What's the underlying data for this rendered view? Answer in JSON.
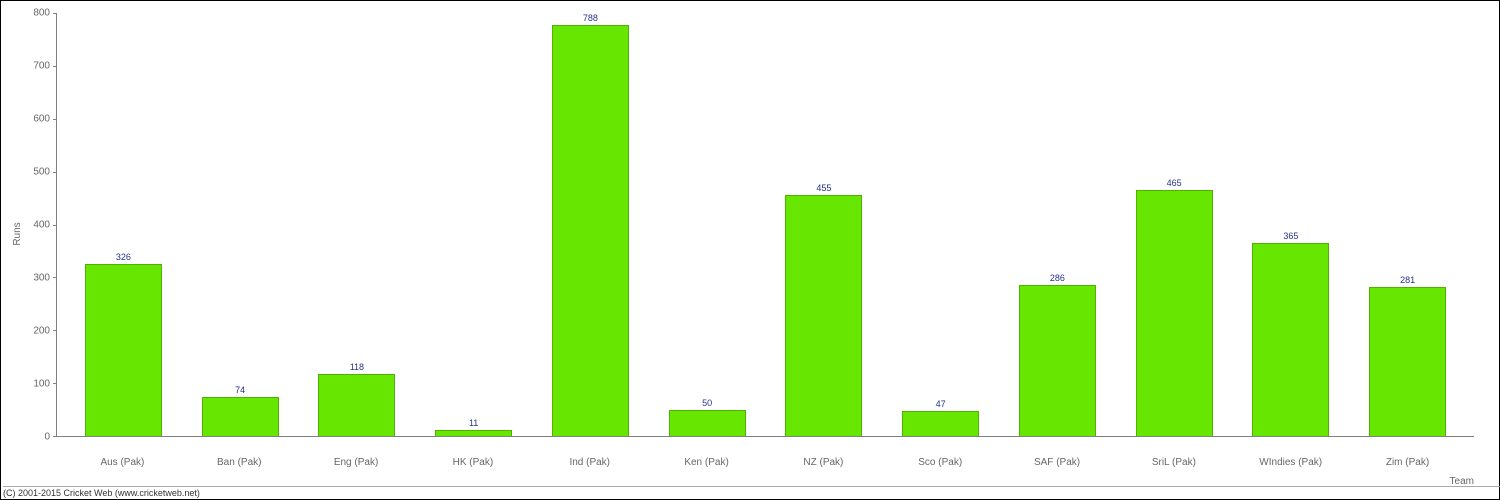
{
  "chart": {
    "type": "bar",
    "ylabel": "Runs",
    "xlabel": "Team",
    "ylim": [
      0,
      800
    ],
    "ytick_step": 100,
    "yticks": [
      0,
      100,
      200,
      300,
      400,
      500,
      600,
      700,
      800
    ],
    "categories": [
      "Aus (Pak)",
      "Ban (Pak)",
      "Eng (Pak)",
      "HK (Pak)",
      "Ind (Pak)",
      "Ken (Pak)",
      "NZ (Pak)",
      "Sco (Pak)",
      "SAF (Pak)",
      "SriL (Pak)",
      "WIndies (Pak)",
      "Zim (Pak)"
    ],
    "values": [
      326,
      74,
      118,
      11,
      788,
      50,
      455,
      47,
      286,
      465,
      365,
      281
    ],
    "bar_color": "#66e600",
    "bar_border": "#4db300",
    "value_label_color": "#223388",
    "axis_line_color": "#808080",
    "tick_label_color": "#666666",
    "label_fontsize": 10,
    "value_fontsize": 9,
    "background_color": "#ffffff",
    "border_color": "#000000",
    "bar_width": 0.66
  },
  "copyright": "(C) 2001-2015 Cricket Web (www.cricketweb.net)"
}
